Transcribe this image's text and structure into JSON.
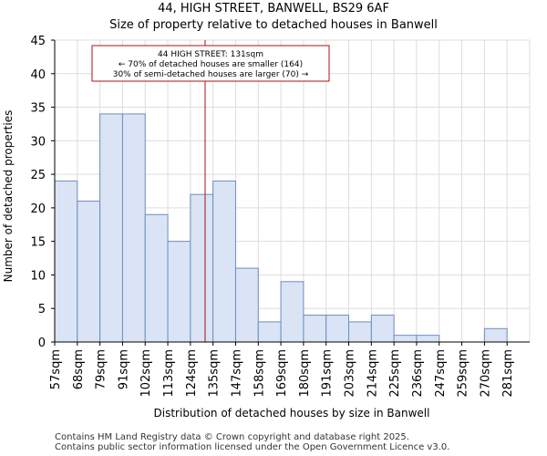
{
  "chart_data": {
    "type": "bar",
    "title": "44, HIGH STREET, BANWELL, BS29 6AF",
    "subtitle": "Size of property relative to detached houses in Banwell",
    "xlabel": "Distribution of detached houses by size in Banwell",
    "ylabel": "Number of detached properties",
    "categories": [
      "57sqm",
      "68sqm",
      "79sqm",
      "91sqm",
      "102sqm",
      "113sqm",
      "124sqm",
      "135sqm",
      "147sqm",
      "158sqm",
      "169sqm",
      "180sqm",
      "191sqm",
      "203sqm",
      "214sqm",
      "225sqm",
      "236sqm",
      "247sqm",
      "259sqm",
      "270sqm",
      "281sqm"
    ],
    "values": [
      24,
      21,
      34,
      34,
      19,
      15,
      22,
      24,
      11,
      3,
      9,
      4,
      4,
      3,
      4,
      1,
      1,
      0,
      0,
      2,
      0
    ],
    "ylim": [
      0,
      45
    ],
    "yticks": [
      0,
      5,
      10,
      15,
      20,
      25,
      30,
      35,
      40,
      45
    ],
    "marker_value_index": 6.65,
    "annotation": {
      "line1": "44 HIGH STREET: 131sqm",
      "line2": "← 70% of detached houses are smaller (164)",
      "line3": "30% of semi-detached houses are larger (70) →"
    },
    "colors": {
      "bar_fill": "#dae4f5",
      "bar_stroke": "#6c8ebf",
      "marker": "#aa1111",
      "grid": "#dddddd"
    }
  },
  "footer": {
    "line1": "Contains HM Land Registry data © Crown copyright and database right 2025.",
    "line2": "Contains public sector information licensed under the Open Government Licence v3.0."
  }
}
